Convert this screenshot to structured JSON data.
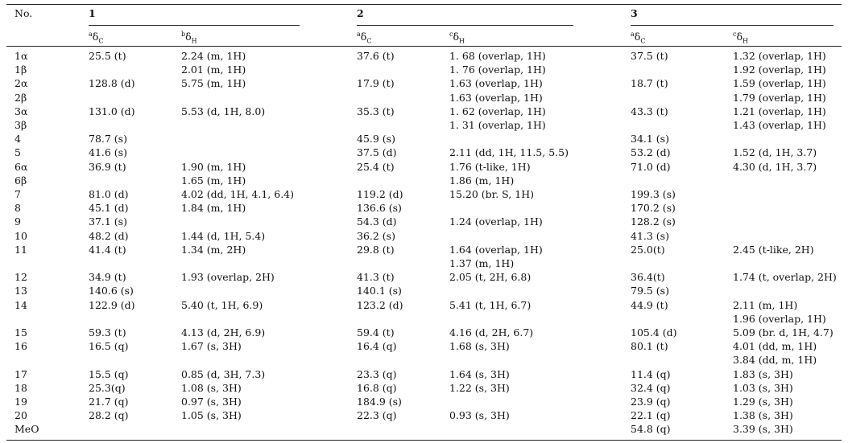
{
  "table": {
    "header": {
      "no": "No.",
      "groups": [
        "1",
        "2",
        "3"
      ],
      "subheads": [
        {
          "sup": "a",
          "main": "δ",
          "sub": "C"
        },
        {
          "sup": "b",
          "main": "δ",
          "sub": "H"
        },
        {
          "sup": "a",
          "main": "δ",
          "sub": "C"
        },
        {
          "sup": "c",
          "main": "δ",
          "sub": "H"
        },
        {
          "sup": "a",
          "main": "δ",
          "sub": "C"
        },
        {
          "sup": "c",
          "main": "δ",
          "sub": "H"
        }
      ]
    },
    "rows": [
      [
        "1α",
        "25.5 (t)",
        "2.24 (m, 1H)",
        "37.6 (t)",
        "1. 68 (overlap, 1H)",
        "37.5 (t)",
        "1.32 (overlap, 1H)"
      ],
      [
        "1β",
        null,
        "2.01 (m, 1H)",
        null,
        "1. 76 (overlap, 1H)",
        null,
        "1.92 (overlap, 1H)"
      ],
      [
        "2α",
        "128.8 (d)",
        "5.75 (m, 1H)",
        "17.9 (t)",
        "1.63 (overlap, 1H)",
        "18.7 (t)",
        "1.59 (overlap, 1H)"
      ],
      [
        "2β",
        null,
        null,
        null,
        "1.63 (overlap, 1H)",
        null,
        "1.79 (overlap, 1H)"
      ],
      [
        "3α",
        "131.0 (d)",
        "5.53 (d, 1H, 8.0)",
        "35.3 (t)",
        "1. 62 (overlap, 1H)",
        "43.3 (t)",
        "1.21 (overlap, 1H)"
      ],
      [
        "3β",
        null,
        null,
        null,
        "1. 31 (overlap, 1H)",
        null,
        "1.43 (overlap, 1H)"
      ],
      [
        "4",
        "78.7 (s)",
        null,
        "45.9 (s)",
        null,
        "34.1 (s)",
        null
      ],
      [
        "5",
        "41.6 (s)",
        null,
        "37.5 (d)",
        "2.11 (dd, 1H, 11.5, 5.5)",
        "53.2 (d)",
        "1.52 (d, 1H, 3.7)"
      ],
      [
        "6α",
        "36.9 (t)",
        "1.90 (m, 1H)",
        "25.4 (t)",
        "1.76 (t-like, 1H)",
        "71.0 (d)",
        "4.30 (d, 1H, 3.7)"
      ],
      [
        "6β",
        null,
        "1.65 (m, 1H)",
        null,
        "1.86 (m, 1H)",
        null,
        null
      ],
      [
        "7",
        "81.0 (d)",
        "4.02 (dd, 1H, 4.1, 6.4)",
        "119.2 (d)",
        "15.20 (br. S, 1H)",
        "199.3 (s)",
        null
      ],
      [
        "8",
        "45.1 (d)",
        "1.84 (m, 1H)",
        "136.6 (s)",
        null,
        "170.2 (s)",
        null
      ],
      [
        "9",
        "37.1 (s)",
        null,
        "54.3 (d)",
        "1.24 (overlap, 1H)",
        "128.2 (s)",
        null
      ],
      [
        "10",
        "48.2 (d)",
        "1.44 (d, 1H, 5.4)",
        "36.2 (s)",
        null,
        "41.3 (s)",
        null
      ],
      [
        "11",
        "41.4 (t)",
        "1.34 (m, 2H)",
        "29.8 (t)",
        "1.64 (overlap, 1H)",
        "25.0(t)",
        "2.45 (t-like, 2H)"
      ],
      [
        null,
        null,
        null,
        null,
        "1.37 (m, 1H)",
        null,
        null
      ],
      [
        "12",
        "34.9 (t)",
        "1.93 (overlap, 2H)",
        "41.3 (t)",
        "2.05 (t, 2H, 6.8)",
        "36.4(t)",
        "1.74 (t, overlap, 2H)"
      ],
      [
        "13",
        "140.6 (s)",
        null,
        "140.1 (s)",
        null,
        "79.5 (s)",
        null
      ],
      [
        "14",
        "122.9 (d)",
        "5.40 (t, 1H, 6.9)",
        "123.2 (d)",
        "5.41 (t, 1H, 6.7)",
        "44.9 (t)",
        "2.11 (m, 1H)"
      ],
      [
        null,
        null,
        null,
        null,
        null,
        null,
        "1.96 (overlap, 1H)"
      ],
      [
        "15",
        "59.3 (t)",
        "4.13 (d, 2H, 6.9)",
        "59.4 (t)",
        "4.16 (d, 2H, 6.7)",
        "105.4 (d)",
        "5.09 (br. d, 1H, 4.7)"
      ],
      [
        "16",
        "16.5 (q)",
        "1.67 (s, 3H)",
        "16.4 (q)",
        "1.68 (s, 3H)",
        "80.1 (t)",
        "4.01 (dd, m, 1H)"
      ],
      [
        null,
        null,
        null,
        null,
        null,
        null,
        "3.84 (dd, m, 1H)"
      ],
      [
        "17",
        "15.5 (q)",
        "0.85 (d, 3H, 7.3)",
        "23.3 (q)",
        "1.64 (s, 3H)",
        "11.4 (q)",
        "1.83 (s, 3H)"
      ],
      [
        "18",
        "25.3(q)",
        "1.08 (s, 3H)",
        "16.8 (q)",
        "1.22 (s, 3H)",
        "32.4 (q)",
        "1.03 (s, 3H)"
      ],
      [
        "19",
        "21.7 (q)",
        "0.97 (s, 3H)",
        "184.9 (s)",
        null,
        "23.9 (q)",
        "1.29 (s, 3H)"
      ],
      [
        "20",
        "28.2 (q)",
        "1.05 (s, 3H)",
        "22.3 (q)",
        "0.93 (s, 3H)",
        "22.1 (q)",
        "1.38 (s, 3H)"
      ],
      [
        "MeO",
        null,
        null,
        null,
        null,
        "54.8 (q)",
        "3.39 (s, 3H)"
      ]
    ]
  }
}
